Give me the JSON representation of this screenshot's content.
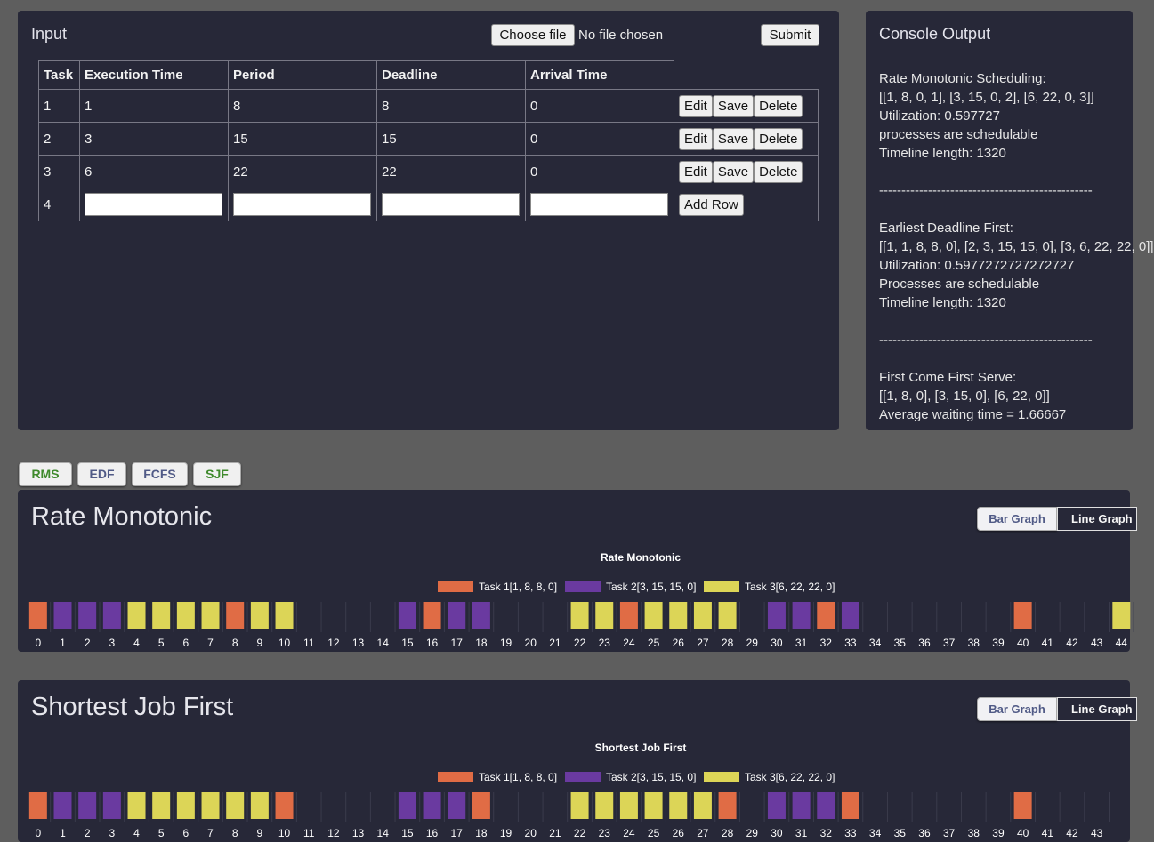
{
  "input_panel": {
    "title": "Input",
    "file_button": "Choose file",
    "file_status": "No file chosen",
    "submit_label": "Submit",
    "columns": [
      "Task",
      "Execution Time",
      "Period",
      "Deadline",
      "Arrival Time"
    ],
    "rows": [
      {
        "task": "1",
        "execution": "1",
        "period": "8",
        "deadline": "8",
        "arrival": "0"
      },
      {
        "task": "2",
        "execution": "3",
        "period": "15",
        "deadline": "15",
        "arrival": "0"
      },
      {
        "task": "3",
        "execution": "6",
        "period": "22",
        "deadline": "22",
        "arrival": "0"
      }
    ],
    "new_row_task": "4",
    "row_actions": {
      "edit": "Edit",
      "save": "Save",
      "delete": "Delete"
    },
    "add_row_label": "Add Row"
  },
  "console": {
    "title": "Console Output",
    "lines": [
      "Rate Monotonic Scheduling:",
      "[[1, 8, 0, 1], [3, 15, 0, 2], [6, 22, 0, 3]]",
      "Utilization: 0.597727",
      "processes are schedulable",
      "Timeline length: 1320",
      "",
      "------------------------------------------------",
      "",
      "Earliest Deadline First:",
      "[[1, 1, 8, 8, 0], [2, 3, 15, 15, 0], [3, 6, 22, 22, 0]]",
      "Utilization: 0.5977272727272727",
      "Processes are schedulable",
      "Timeline length: 1320",
      "",
      "------------------------------------------------",
      "",
      "First Come First Serve:",
      "[[1, 8, 0], [3, 15, 0], [6, 22, 0]]",
      "Average waiting time = 1.66667"
    ]
  },
  "tabs": [
    {
      "label": "RMS",
      "color": "#3f8a2c"
    },
    {
      "label": "EDF",
      "color": "#505a86"
    },
    {
      "label": "FCFS",
      "color": "#505a86"
    },
    {
      "label": "SJF",
      "color": "#3f8a2c"
    }
  ],
  "toggle": {
    "bar": "Bar Graph",
    "line": "Line Graph"
  },
  "colors": {
    "task1": "#e06c45",
    "task2": "#6a3aa0",
    "task3": "#dcd557"
  },
  "chart_data": [
    {
      "type": "bar",
      "title": "Rate Monotonic",
      "heading": "Rate Monotonic",
      "legend": [
        "Task 1[1, 8, 8, 0]",
        "Task 2[3, 15, 15, 0]",
        "Task 3[6, 22, 22, 0]"
      ],
      "legend_position": "top-center",
      "x": [
        0,
        1,
        2,
        3,
        4,
        5,
        6,
        7,
        8,
        9,
        10,
        11,
        12,
        13,
        14,
        15,
        16,
        17,
        18,
        19,
        20,
        21,
        22,
        23,
        24,
        25,
        26,
        27,
        28,
        29,
        30,
        31,
        32,
        33,
        34,
        35,
        36,
        37,
        38,
        39,
        40,
        41,
        42,
        43,
        44
      ],
      "x_ticks": [
        "0",
        "1",
        "2",
        "3",
        "4",
        "5",
        "6",
        "7",
        "8",
        "9",
        "10",
        "11",
        "12",
        "13",
        "14",
        "15",
        "16",
        "17",
        "18",
        "19",
        "20",
        "21",
        "22",
        "23",
        "24",
        "25",
        "26",
        "27",
        "28",
        "29",
        "30",
        "31",
        "32",
        "33",
        "34",
        "35",
        "36",
        "37",
        "38",
        "39",
        "40",
        "41",
        "42",
        "43",
        "44"
      ],
      "task_at_time": [
        1,
        2,
        2,
        2,
        3,
        3,
        3,
        3,
        1,
        3,
        3,
        0,
        0,
        0,
        0,
        2,
        1,
        2,
        2,
        0,
        0,
        0,
        3,
        3,
        1,
        3,
        3,
        3,
        3,
        0,
        2,
        2,
        1,
        2,
        0,
        0,
        0,
        0,
        0,
        0,
        1,
        0,
        0,
        0,
        3
      ]
    },
    {
      "type": "bar",
      "title": "Shortest Job First",
      "heading": "Shortest Job First",
      "legend": [
        "Task 1[1, 8, 8, 0]",
        "Task 2[3, 15, 15, 0]",
        "Task 3[6, 22, 22, 0]"
      ],
      "legend_position": "top-center",
      "x": [
        0,
        1,
        2,
        3,
        4,
        5,
        6,
        7,
        8,
        9,
        10,
        11,
        12,
        13,
        14,
        15,
        16,
        17,
        18,
        19,
        20,
        21,
        22,
        23,
        24,
        25,
        26,
        27,
        28,
        29,
        30,
        31,
        32,
        33,
        34,
        35,
        36,
        37,
        38,
        39,
        40,
        41,
        42,
        43
      ],
      "x_ticks": [
        "0",
        "1",
        "2",
        "3",
        "4",
        "5",
        "6",
        "7",
        "8",
        "9",
        "10",
        "11",
        "12",
        "13",
        "14",
        "15",
        "16",
        "17",
        "18",
        "19",
        "20",
        "21",
        "22",
        "23",
        "24",
        "25",
        "26",
        "27",
        "28",
        "29",
        "30",
        "31",
        "32",
        "33",
        "34",
        "35",
        "36",
        "37",
        "38",
        "39",
        "40",
        "41",
        "42",
        "43"
      ],
      "task_at_time": [
        1,
        2,
        2,
        2,
        3,
        3,
        3,
        3,
        3,
        3,
        1,
        0,
        0,
        0,
        0,
        2,
        2,
        2,
        1,
        0,
        0,
        0,
        3,
        3,
        3,
        3,
        3,
        3,
        1,
        0,
        2,
        2,
        2,
        1,
        0,
        0,
        0,
        0,
        0,
        0,
        1,
        0,
        0,
        0
      ]
    }
  ]
}
